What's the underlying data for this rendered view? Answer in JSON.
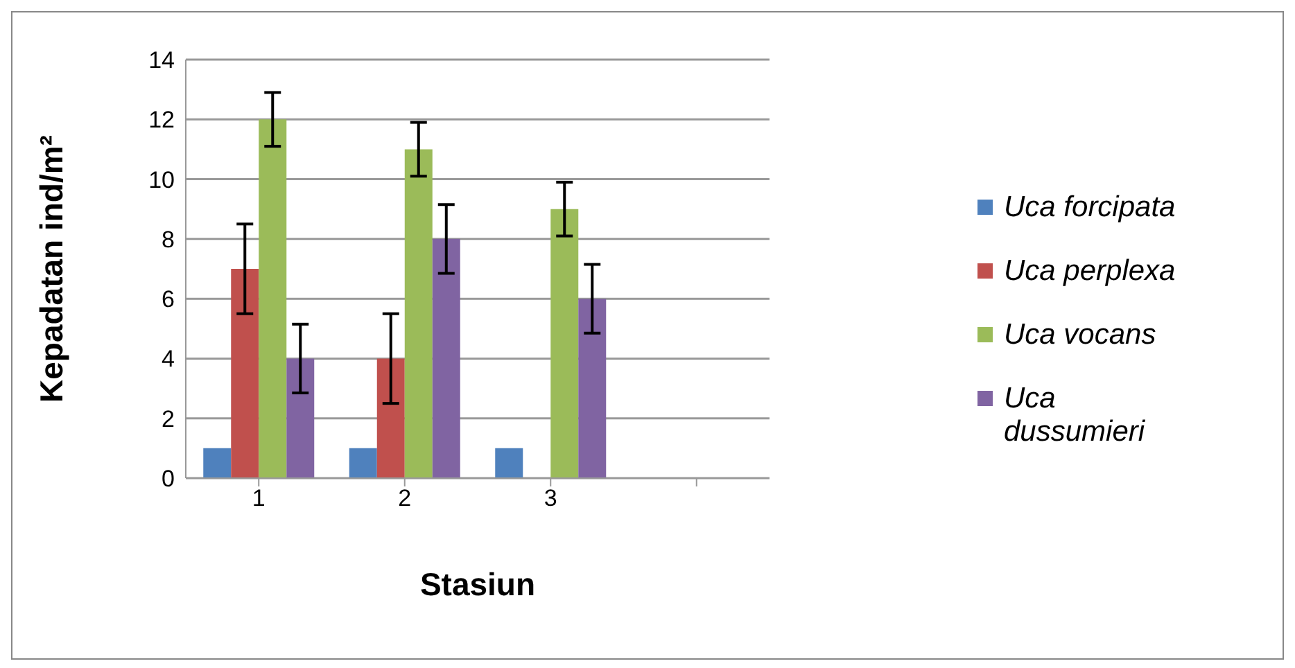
{
  "chart_data": {
    "type": "bar",
    "xlabel": "Stasiun",
    "ylabel": "Kepadatan ind/m²",
    "categories": [
      "1",
      "2",
      "3",
      null
    ],
    "series": [
      {
        "name": "Uca forcipata",
        "color": "#4f81bd",
        "values": [
          1,
          1,
          1,
          null
        ],
        "errors": [
          0,
          0,
          0,
          null
        ]
      },
      {
        "name": "Uca perplexa",
        "color": "#c0504d",
        "values": [
          7,
          4,
          null,
          null
        ],
        "errors": [
          1.5,
          1.5,
          null,
          null
        ]
      },
      {
        "name": "Uca vocans",
        "color": "#9bbb59",
        "values": [
          12,
          11,
          9,
          null
        ],
        "errors": [
          0.9,
          0.9,
          0.9,
          null
        ]
      },
      {
        "name": "Uca dussumieri",
        "color": "#8064a2",
        "values": [
          4,
          8,
          6,
          null
        ],
        "errors": [
          1.15,
          1.15,
          1.15,
          null
        ]
      }
    ],
    "ylim": [
      0,
      14
    ],
    "yticks": [
      0,
      2,
      4,
      6,
      8,
      10,
      12,
      14
    ],
    "grid": "y",
    "legend": "right"
  }
}
